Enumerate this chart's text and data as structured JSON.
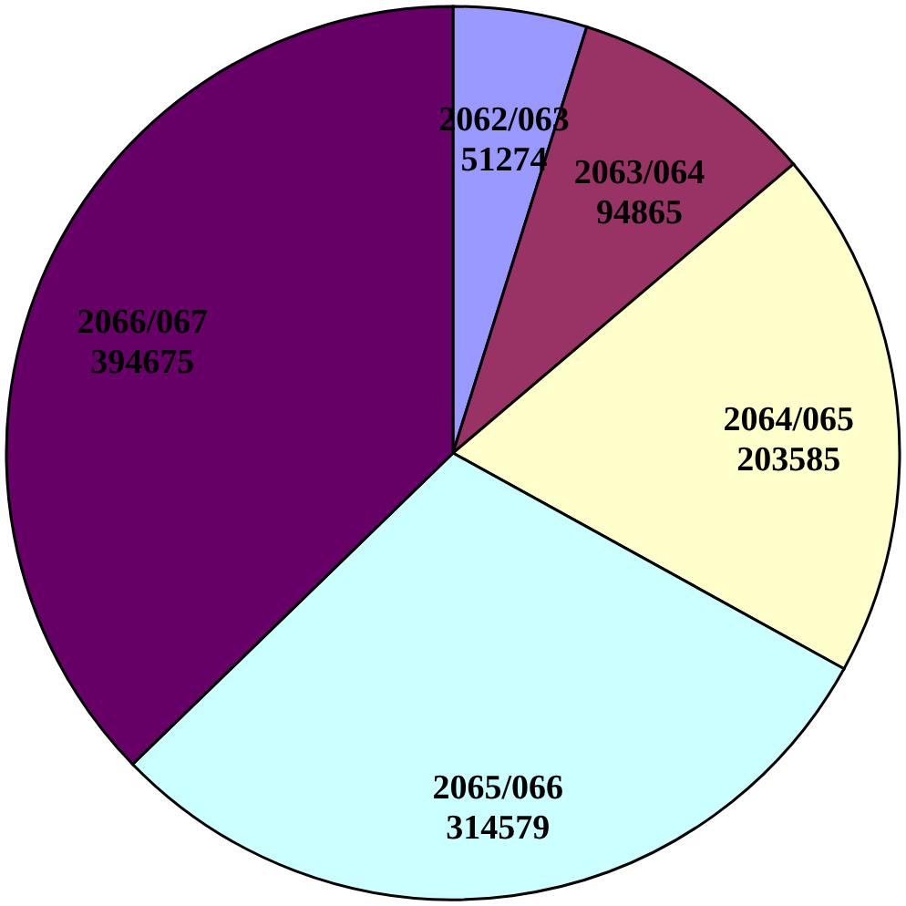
{
  "chart_data": {
    "type": "pie",
    "categories": [
      "2062/063",
      "2063/064",
      "2064/065",
      "2065/066",
      "2066/067"
    ],
    "values": [
      51274,
      94865,
      203585,
      314579,
      394675
    ],
    "colors": [
      "#9999ff",
      "#993366",
      "#ffffcc",
      "#ccffff",
      "#660066"
    ],
    "data_labels": true
  }
}
